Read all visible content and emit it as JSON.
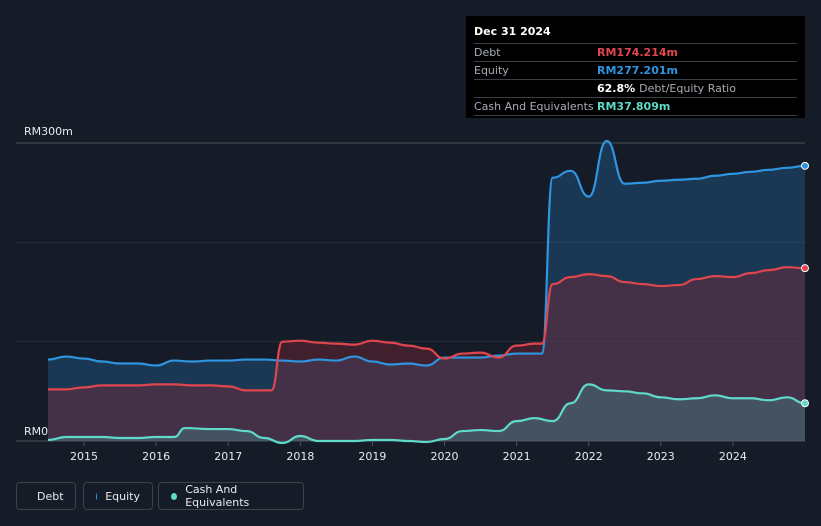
{
  "tooltip": {
    "date": "Dec 31 2024",
    "debt_label": "Debt",
    "debt_value": "RM174.214m",
    "equity_label": "Equity",
    "equity_value": "RM277.201m",
    "ratio_value": "62.8%",
    "ratio_label": "Debt/Equity Ratio",
    "cash_label": "Cash And Equivalents",
    "cash_value": "RM37.809m"
  },
  "legend": {
    "debt": "Debt",
    "equity": "Equity",
    "cash": "Cash And Equivalents"
  },
  "colors": {
    "debt": "#e0464e",
    "equity": "#2f95e0",
    "cash": "#5fd9c9",
    "background": "#151b27"
  },
  "chart_data": {
    "type": "area",
    "y_top_label": "RM300m",
    "y_bottom_label": "RM0",
    "ylim": [
      0,
      300
    ],
    "xlim": [
      2014.5,
      2025.0
    ],
    "x_ticks": [
      "2015",
      "2016",
      "2017",
      "2018",
      "2019",
      "2020",
      "2021",
      "2022",
      "2023",
      "2024"
    ],
    "grid": true,
    "series": [
      {
        "name": "Equity",
        "x": [
          2014.5,
          2014.75,
          2015.0,
          2015.25,
          2015.5,
          2015.75,
          2016.0,
          2016.25,
          2016.5,
          2016.75,
          2017.0,
          2017.25,
          2017.5,
          2017.75,
          2018.0,
          2018.25,
          2018.5,
          2018.75,
          2019.0,
          2019.25,
          2019.5,
          2019.75,
          2020.0,
          2020.25,
          2020.5,
          2020.75,
          2021.0,
          2021.25,
          2021.35,
          2021.5,
          2021.75,
          2022.0,
          2022.25,
          2022.5,
          2022.75,
          2023.0,
          2023.25,
          2023.5,
          2023.75,
          2024.0,
          2024.25,
          2024.5,
          2024.75,
          2025.0
        ],
        "values": [
          82,
          85,
          83,
          80,
          78,
          78,
          76,
          81,
          80,
          81,
          81,
          82,
          82,
          81,
          80,
          82,
          81,
          85,
          80,
          77,
          78,
          76,
          84,
          84,
          84,
          86,
          88,
          88,
          88,
          265,
          272,
          246,
          302,
          259,
          260,
          262,
          263,
          264,
          267,
          269,
          271,
          273,
          275,
          277
        ]
      },
      {
        "name": "Debt",
        "x": [
          2014.5,
          2014.75,
          2015.0,
          2015.25,
          2015.5,
          2015.75,
          2016.0,
          2016.25,
          2016.5,
          2016.75,
          2017.0,
          2017.25,
          2017.5,
          2017.6,
          2017.75,
          2018.0,
          2018.25,
          2018.5,
          2018.75,
          2019.0,
          2019.25,
          2019.5,
          2019.75,
          2020.0,
          2020.25,
          2020.5,
          2020.75,
          2021.0,
          2021.25,
          2021.35,
          2021.5,
          2021.75,
          2022.0,
          2022.25,
          2022.5,
          2022.75,
          2023.0,
          2023.25,
          2023.5,
          2023.75,
          2024.0,
          2024.25,
          2024.5,
          2024.75,
          2025.0
        ],
        "values": [
          52,
          52,
          54,
          56,
          56,
          56,
          57,
          57,
          56,
          56,
          55,
          51,
          51,
          51,
          100,
          101,
          99,
          98,
          97,
          101,
          99,
          96,
          93,
          83,
          88,
          89,
          84,
          96,
          98,
          98,
          158,
          165,
          168,
          166,
          160,
          158,
          156,
          157,
          163,
          166,
          165,
          169,
          172,
          175,
          174
        ]
      },
      {
        "name": "Cash And Equivalents",
        "x": [
          2014.5,
          2014.75,
          2015.0,
          2015.25,
          2015.5,
          2015.75,
          2016.0,
          2016.25,
          2016.4,
          2016.75,
          2017.0,
          2017.25,
          2017.5,
          2017.75,
          2018.0,
          2018.25,
          2018.5,
          2018.75,
          2019.0,
          2019.25,
          2019.5,
          2019.75,
          2020.0,
          2020.25,
          2020.5,
          2020.75,
          2021.0,
          2021.25,
          2021.5,
          2021.75,
          2022.0,
          2022.25,
          2022.5,
          2022.75,
          2023.0,
          2023.25,
          2023.5,
          2023.75,
          2024.0,
          2024.25,
          2024.5,
          2024.75,
          2025.0
        ],
        "values": [
          1,
          4,
          4,
          4,
          3,
          3,
          4,
          4,
          13,
          12,
          12,
          10,
          3,
          -2,
          5,
          0,
          0,
          0,
          1,
          1,
          0,
          -1,
          2,
          10,
          11,
          10,
          20,
          23,
          20,
          38,
          57,
          51,
          50,
          48,
          44,
          42,
          43,
          46,
          43,
          43,
          41,
          44,
          38
        ]
      }
    ]
  }
}
